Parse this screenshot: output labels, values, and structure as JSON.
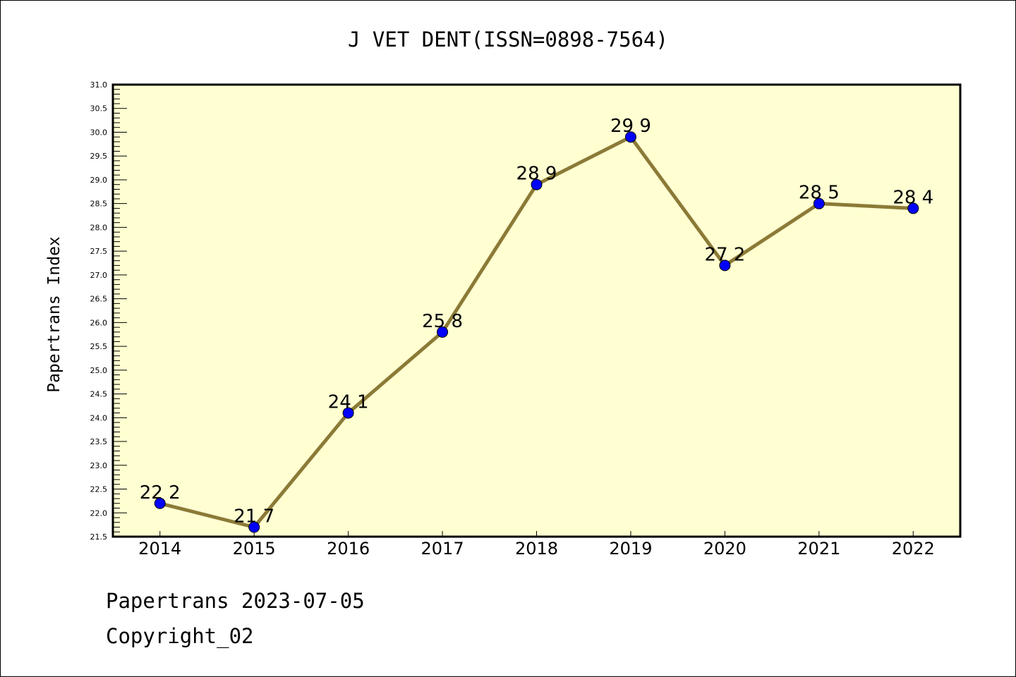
{
  "chart_data": {
    "type": "line",
    "title": "J VET DENT(ISSN=0898-7564)",
    "xlabel": "",
    "ylabel": "Papertrans Index",
    "categories": [
      "2014",
      "2015",
      "2016",
      "2017",
      "2018",
      "2019",
      "2020",
      "2021",
      "2022"
    ],
    "series": [
      {
        "name": "Papertrans Index",
        "values": [
          22.2,
          21.7,
          24.1,
          25.8,
          28.9,
          29.9,
          27.2,
          28.5,
          28.4
        ]
      }
    ],
    "data_labels": [
      "22.2",
      "21.7",
      "24.1",
      "25.8",
      "28.9",
      "29.9",
      "27.2",
      "28.5",
      "28.4"
    ],
    "ylim": [
      21.5,
      31.0
    ],
    "yticks": [
      "21.5",
      "22.0",
      "22.5",
      "23.0",
      "23.5",
      "24.0",
      "24.5",
      "25.0",
      "25.5",
      "26.0",
      "26.5",
      "27.0",
      "27.5",
      "28.0",
      "28.5",
      "29.0",
      "29.5",
      "30.0",
      "30.5",
      "31.0"
    ],
    "grid": false,
    "colors": {
      "line": "#8b7a36",
      "marker": "#0000ff",
      "plot_bg": "#ffffd2"
    }
  },
  "footer": {
    "line1": "Papertrans 2023-07-05",
    "line2": "Copyright_02"
  }
}
